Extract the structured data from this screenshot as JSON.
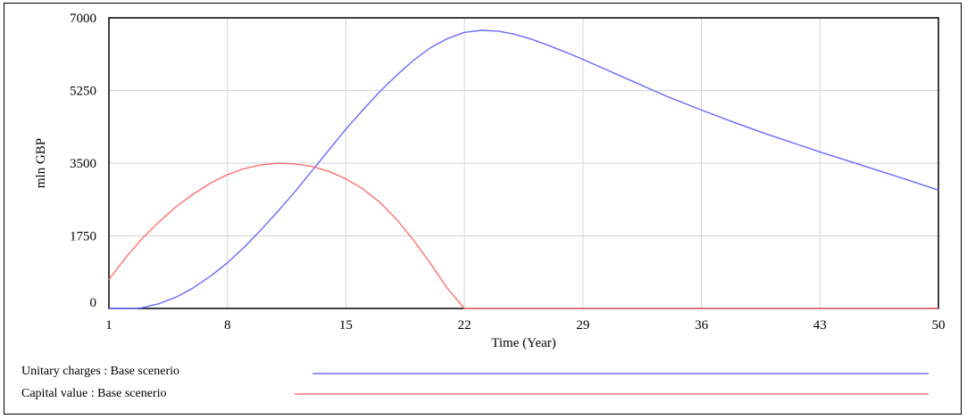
{
  "chart_data": {
    "type": "line",
    "xlabel": "Time (Year)",
    "ylabel": "mln GBP",
    "xlim": [
      1,
      50
    ],
    "ylim": [
      0,
      7000
    ],
    "x_ticks": [
      1,
      8,
      15,
      22,
      29,
      36,
      43,
      50
    ],
    "y_ticks": [
      0,
      1750,
      3500,
      5250,
      7000
    ],
    "grid": true,
    "legend_position": "bottom",
    "series": [
      {
        "name": "Unitary charges : Base scenerio",
        "color": "#6a6aff",
        "points": [
          [
            1,
            0
          ],
          [
            2.5,
            0
          ],
          [
            3,
            20
          ],
          [
            4,
            120
          ],
          [
            5,
            280
          ],
          [
            6,
            500
          ],
          [
            7,
            780
          ],
          [
            8,
            1100
          ],
          [
            9,
            1480
          ],
          [
            10,
            1900
          ],
          [
            11,
            2350
          ],
          [
            12,
            2820
          ],
          [
            13,
            3320
          ],
          [
            14,
            3820
          ],
          [
            15,
            4320
          ],
          [
            16,
            4780
          ],
          [
            17,
            5220
          ],
          [
            18,
            5620
          ],
          [
            19,
            5980
          ],
          [
            20,
            6280
          ],
          [
            21,
            6500
          ],
          [
            22,
            6650
          ],
          [
            23,
            6700
          ],
          [
            24,
            6680
          ],
          [
            25,
            6600
          ],
          [
            26,
            6480
          ],
          [
            27,
            6330
          ],
          [
            28,
            6170
          ],
          [
            29,
            6000
          ],
          [
            30,
            5820
          ],
          [
            32,
            5460
          ],
          [
            34,
            5100
          ],
          [
            36,
            4780
          ],
          [
            38,
            4470
          ],
          [
            40,
            4180
          ],
          [
            43,
            3770
          ],
          [
            46,
            3380
          ],
          [
            48,
            3120
          ],
          [
            50,
            2850
          ]
        ]
      },
      {
        "name": "Capital value : Base scenerio",
        "color": "#ff7070",
        "points": [
          [
            1,
            700
          ],
          [
            2,
            1230
          ],
          [
            3,
            1700
          ],
          [
            4,
            2100
          ],
          [
            5,
            2460
          ],
          [
            6,
            2760
          ],
          [
            7,
            3020
          ],
          [
            8,
            3220
          ],
          [
            9,
            3370
          ],
          [
            10,
            3460
          ],
          [
            11,
            3500
          ],
          [
            12,
            3480
          ],
          [
            13,
            3420
          ],
          [
            14,
            3300
          ],
          [
            15,
            3120
          ],
          [
            16,
            2880
          ],
          [
            17,
            2560
          ],
          [
            18,
            2140
          ],
          [
            19,
            1640
          ],
          [
            20,
            1080
          ],
          [
            21,
            480
          ],
          [
            22,
            0
          ],
          [
            50,
            0
          ]
        ]
      }
    ]
  }
}
